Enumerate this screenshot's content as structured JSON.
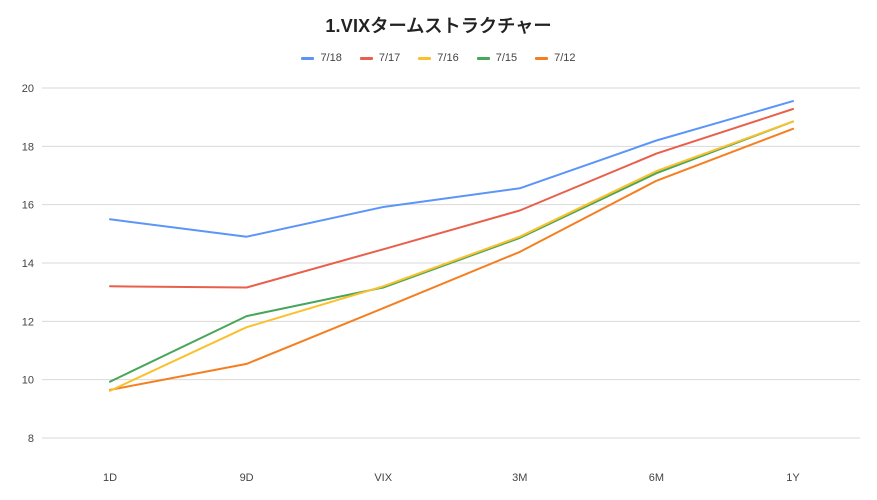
{
  "chart_data": {
    "type": "line",
    "title": "1.VIXタームストラクチャー",
    "xlabel": "",
    "ylabel": "",
    "categories": [
      "1D",
      "9D",
      "VIX",
      "3M",
      "6M",
      "1Y"
    ],
    "ylim": [
      8,
      20
    ],
    "yticks": [
      8,
      10,
      12,
      14,
      16,
      18,
      20
    ],
    "grid": true,
    "legend_position": "top",
    "series": [
      {
        "name": "7/18",
        "color": "#5b95f9",
        "values": [
          15.5,
          14.9,
          15.92,
          16.56,
          18.2,
          19.55
        ]
      },
      {
        "name": "7/17",
        "color": "#e8604c",
        "values": [
          13.2,
          13.16,
          14.47,
          15.8,
          17.75,
          19.28
        ]
      },
      {
        "name": "7/16",
        "color": "#fbc02d",
        "values": [
          9.62,
          11.8,
          13.2,
          14.9,
          17.15,
          18.85
        ]
      },
      {
        "name": "7/15",
        "color": "#47a659",
        "values": [
          9.93,
          12.18,
          13.16,
          14.86,
          17.08,
          18.85
        ]
      },
      {
        "name": "7/12",
        "color": "#f57f20",
        "values": [
          9.65,
          10.54,
          12.45,
          14.38,
          16.82,
          18.6
        ]
      }
    ]
  }
}
